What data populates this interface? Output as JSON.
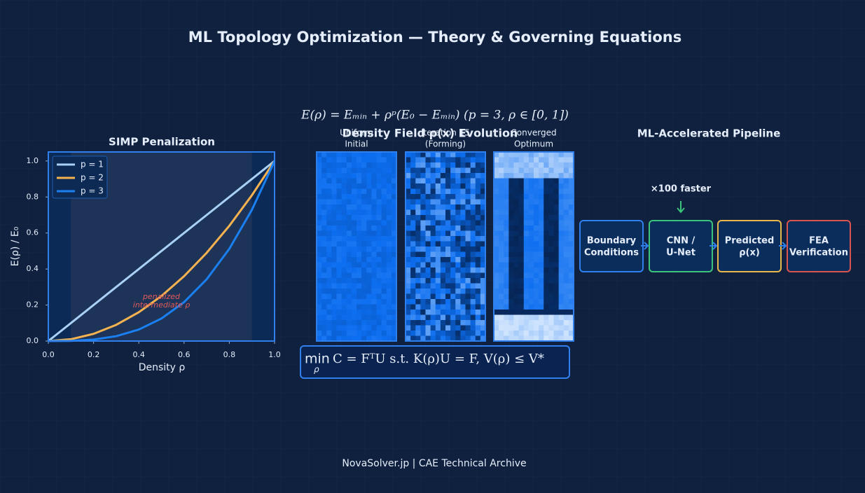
{
  "title": "ML Topology Optimization — Theory & Governing Equations",
  "equation_top": "E(ρ) = Eₘᵢₙ + ρᵖ(E₀ − Eₘᵢₙ)   (p = 3,  ρ ∈ [0, 1])",
  "chart_data": {
    "type": "line",
    "title": "SIMP Penalization",
    "x_label": "Density  ρ",
    "y_label": "E(ρ) / E₀",
    "x": [
      0,
      0.1,
      0.2,
      0.3,
      0.4,
      0.5,
      0.6,
      0.7,
      0.8,
      0.9,
      1
    ],
    "series": [
      {
        "name": "p = 1",
        "color": "#a9d0f5",
        "values": [
          0,
          0.1,
          0.2,
          0.3,
          0.4,
          0.5,
          0.6,
          0.7,
          0.8,
          0.9,
          1
        ]
      },
      {
        "name": "p = 2",
        "color": "#f4b350",
        "values": [
          0,
          0.01,
          0.04,
          0.09,
          0.16,
          0.25,
          0.36,
          0.49,
          0.64,
          0.81,
          1
        ]
      },
      {
        "name": "p = 3",
        "color": "#1a80f2",
        "values": [
          0,
          0.001,
          0.008,
          0.027,
          0.064,
          0.125,
          0.216,
          0.343,
          0.512,
          0.729,
          1
        ]
      }
    ],
    "xlim": [
      0,
      1
    ],
    "ylim": [
      0,
      1.05
    ],
    "xticks": [
      {
        "value": 0,
        "label": "0.0"
      },
      0.2,
      0.4,
      0.6,
      0.8,
      {
        "value": 1,
        "label": "1.0"
      }
    ],
    "yticks": [
      {
        "value": 0,
        "label": "0.0"
      },
      0.2,
      0.4,
      0.6,
      0.8,
      {
        "value": 1,
        "label": "1.0"
      }
    ],
    "legend": "upper left",
    "shaded_region": [
      0.1,
      0.9
    ],
    "annotation": [
      "penalized",
      "intermediate ρ"
    ]
  },
  "density_field": {
    "title": "Density Field ρ(x) Evolution",
    "panels": [
      {
        "lines": [
          "Uniform",
          "Initial"
        ]
      },
      {
        "lines": [
          "Iteration 15",
          "(Forming)"
        ]
      },
      {
        "lines": [
          "Converged",
          "Optimum"
        ]
      }
    ]
  },
  "optimization": {
    "operator": "min",
    "operator_sub": "ρ",
    "body": "C = FᵀU   s.t.   K(ρ)U = F,   V(ρ) ≤ V*"
  },
  "pipeline": {
    "title": "ML-Accelerated Pipeline",
    "speedup": "×100 faster",
    "nodes": [
      {
        "lines": [
          "Boundary",
          "Conditions"
        ],
        "color": "#2f80ed"
      },
      {
        "lines": [
          "CNN /",
          "U-Net"
        ],
        "color": "#3cc47a"
      },
      {
        "lines": [
          "Predicted",
          "ρ(x)"
        ],
        "color": "#e8b84a"
      },
      {
        "lines": [
          "FEA",
          "Verification"
        ],
        "color": "#d9534f"
      }
    ]
  },
  "footer": "NovaSolver.jp  |  CAE Technical Archive"
}
